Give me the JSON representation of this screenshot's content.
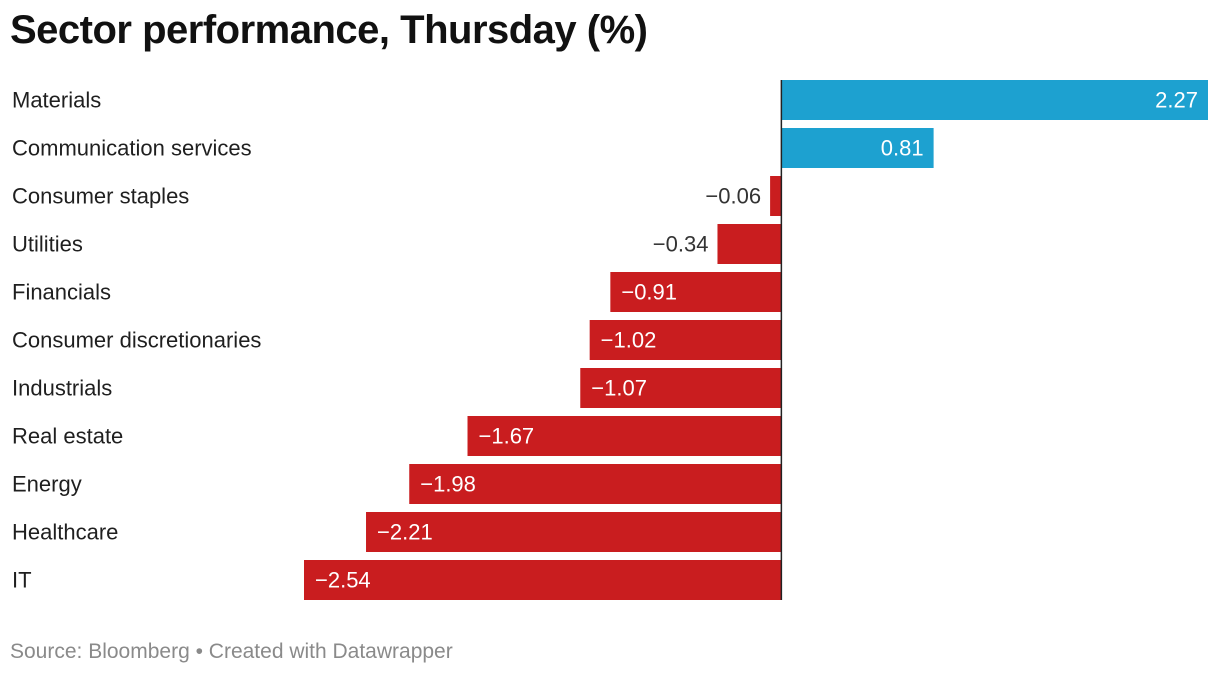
{
  "colors": {
    "positive": "#1da1d0",
    "negative": "#c91d1f",
    "label_inside": "#ffffff",
    "label_outside": "#333333",
    "axis": "#222222"
  },
  "chart_data": {
    "type": "bar",
    "orientation": "horizontal",
    "title": "Sector performance, Thursday (%)",
    "categories": [
      "Materials",
      "Communication services",
      "Consumer staples",
      "Utilities",
      "Financials",
      "Consumer discretionaries",
      "Industrials",
      "Real estate",
      "Energy",
      "Healthcare",
      "IT"
    ],
    "values": [
      2.27,
      0.81,
      -0.06,
      -0.34,
      -0.91,
      -1.02,
      -1.07,
      -1.67,
      -1.98,
      -2.21,
      -2.54
    ],
    "value_labels": [
      "2.27",
      "0.81",
      "−0.06",
      "−0.34",
      "−0.91",
      "−1.02",
      "−1.07",
      "−1.67",
      "−1.98",
      "−2.21",
      "−2.54"
    ],
    "xlim": [
      -2.54,
      2.27
    ],
    "grid": false,
    "legend": "none"
  },
  "footer": {
    "source": "Source: Bloomberg • Created with Datawrapper"
  }
}
